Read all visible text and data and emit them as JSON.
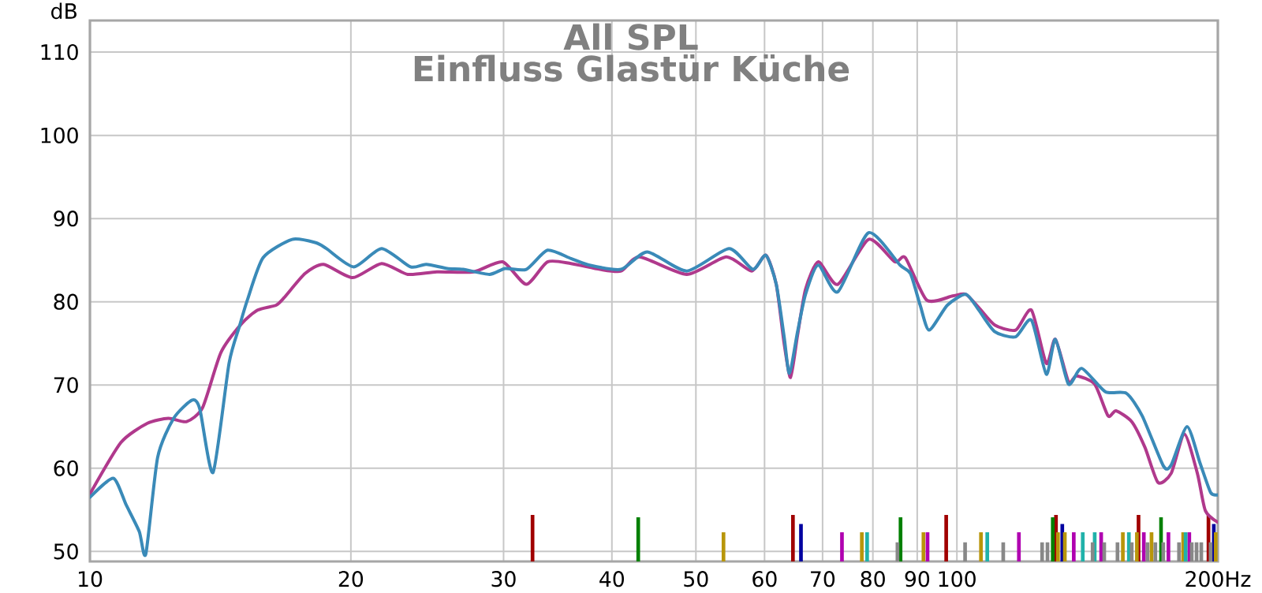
{
  "chart_data": {
    "type": "line",
    "title": "All SPL",
    "subtitle": "Einfluss Glastür Küche",
    "ylabel": "dB",
    "log": "x",
    "grid": true,
    "xlim": [
      10,
      200
    ],
    "ylim": [
      48.8,
      113.8
    ],
    "xticks": [
      10,
      20,
      30,
      40,
      50,
      60,
      70,
      80,
      90,
      100,
      {
        "value": 200,
        "label": "200Hz"
      }
    ],
    "yticks": [
      50,
      60,
      70,
      80,
      90,
      100,
      110
    ],
    "series": [
      {
        "type": "bar",
        "color": "#a00000",
        "x": [
          32.4,
          64.7,
          97.2,
          130.1,
          162.0,
          195.1
        ],
        "values": [
          54.4,
          54.4,
          54.4,
          54.4,
          54.4,
          54.4
        ]
      },
      {
        "type": "bar",
        "color": "#008000",
        "x": [
          42.9,
          86.1,
          129.0,
          172.0
        ],
        "values": [
          54.1,
          54.1,
          54.1,
          54.1
        ]
      },
      {
        "type": "bar",
        "color": "#0000a0",
        "x": [
          66.1,
          132.3,
          197.9
        ],
        "values": [
          53.3,
          53.3,
          53.3
        ]
      },
      {
        "type": "bar",
        "color": "#b8960b",
        "x": [
          53.8,
          77.7,
          91.5,
          106.6,
          130.8,
          133.2,
          155.4,
          161.3,
          167.7,
          182.4,
          198.9
        ],
        "values": [
          52.3,
          52.3,
          52.3,
          52.3,
          52.3,
          52.3,
          52.3,
          52.3,
          52.3,
          52.3,
          52.3
        ]
      },
      {
        "type": "bar",
        "color": "#b000b0",
        "x": [
          73.7,
          92.5,
          117.9,
          136.4,
          146.7,
          164.3,
          175.4,
          185.4
        ],
        "values": [
          52.3,
          52.3,
          52.3,
          52.3,
          52.3,
          52.3,
          52.3,
          52.3
        ]
      },
      {
        "type": "bar",
        "color": "#20b2aa",
        "x": [
          78.8,
          108.4,
          139.7,
          144.2,
          157.9,
          183.6
        ],
        "values": [
          52.3,
          52.3,
          52.3,
          52.3,
          52.3,
          52.3
        ]
      },
      {
        "type": "bar",
        "color": "#888888",
        "x": [
          85.4,
          102.2,
          113.1,
          125.4,
          127.2,
          143.4,
          147.9,
          153.2,
          159.1,
          165.9,
          169.4,
          173.0,
          180.4,
          186.6,
          189.0,
          191.4,
          196.2
        ],
        "values": [
          51.1,
          51.1,
          51.1,
          51.1,
          51.1,
          51.1,
          51.1,
          51.1,
          51.1,
          51.1,
          51.1,
          51.1,
          51.1,
          51.1,
          51.1,
          51.1,
          51.1
        ]
      },
      {
        "color": "#b0398c",
        "x": [
          10,
          10.86,
          11.65,
          12.32,
          12.93,
          13.49,
          14.16,
          14.97,
          15.61,
          16.4,
          16.75,
          17.71,
          18.6,
          20.09,
          21.7,
          23.26,
          25.13,
          27.71,
          29.92,
          31.87,
          33.71,
          35.89,
          38.75,
          41.0,
          43.05,
          48.8,
          54.2,
          58.0,
          60.2,
          61.9,
          63.2,
          64.3,
          65.5,
          66.9,
          69.2,
          72.9,
          79.1,
          84.8,
          87.2,
          92.3,
          98.9,
          102.4,
          106.0,
          110.6,
          116.9,
          121.9,
          126.8,
          129.9,
          134.5,
          137.4,
          144.2,
          149.4,
          152.6,
          159.1,
          164.8,
          170.6,
          176.7,
          183.0,
          189.4,
          193.5,
          200
        ],
        "values": [
          56.9,
          63.1,
          65.4,
          66.0,
          65.6,
          67.3,
          73.9,
          77.4,
          79.0,
          79.6,
          80.5,
          83.4,
          84.5,
          82.9,
          84.6,
          83.3,
          83.6,
          83.6,
          84.8,
          82.1,
          84.8,
          84.6,
          83.9,
          83.7,
          85.4,
          83.3,
          85.4,
          83.7,
          85.6,
          82.1,
          75.0,
          70.9,
          76.0,
          81.5,
          84.8,
          82.1,
          87.5,
          84.8,
          85.3,
          80.2,
          80.7,
          80.9,
          79.3,
          77.2,
          76.6,
          79.0,
          72.6,
          75.5,
          70.4,
          71.1,
          70.1,
          66.3,
          66.9,
          65.6,
          62.5,
          58.3,
          59.4,
          64.1,
          59.4,
          54.9,
          53.5
        ]
      },
      {
        "color": "#3a8ab8",
        "x": [
          10,
          10.64,
          11.01,
          11.4,
          11.6,
          11.97,
          12.49,
          13.12,
          13.39,
          13.87,
          14.47,
          14.88,
          15.19,
          15.84,
          17.11,
          18.22,
          18.74,
          20.15,
          21.7,
          23.43,
          24.43,
          25.83,
          26.94,
          28.9,
          30.13,
          31.87,
          33.71,
          35.89,
          37.7,
          41.0,
          43.95,
          48.8,
          54.6,
          58.15,
          60.2,
          61.9,
          63.2,
          64.1,
          65.5,
          66.9,
          69.2,
          72.9,
          79.1,
          86.0,
          88.4,
          90.7,
          92.9,
          97.5,
          102.4,
          106.0,
          110.6,
          116.9,
          121.9,
          126.8,
          129.9,
          134.5,
          139.3,
          148.3,
          156.9,
          163.6,
          173.0,
          176.7,
          184.3,
          190.8,
          196.2,
          200
        ],
        "values": [
          56.5,
          58.8,
          55.6,
          52.4,
          49.7,
          61.3,
          66.0,
          68.2,
          67.1,
          59.5,
          72.6,
          77.1,
          80.2,
          85.3,
          87.5,
          87.1,
          86.4,
          84.2,
          86.4,
          84.2,
          84.5,
          84.0,
          83.9,
          83.3,
          84.0,
          83.9,
          86.2,
          85.2,
          84.4,
          83.9,
          86.0,
          83.7,
          86.4,
          83.9,
          85.6,
          82.1,
          75.8,
          71.4,
          76.4,
          80.9,
          84.4,
          81.2,
          88.3,
          84.4,
          83.4,
          79.6,
          76.6,
          79.6,
          80.9,
          79.0,
          76.4,
          75.8,
          77.8,
          71.3,
          75.5,
          70.1,
          72.0,
          69.2,
          69.0,
          66.3,
          60.3,
          60.4,
          65.0,
          60.6,
          57.1,
          56.8
        ]
      }
    ]
  }
}
